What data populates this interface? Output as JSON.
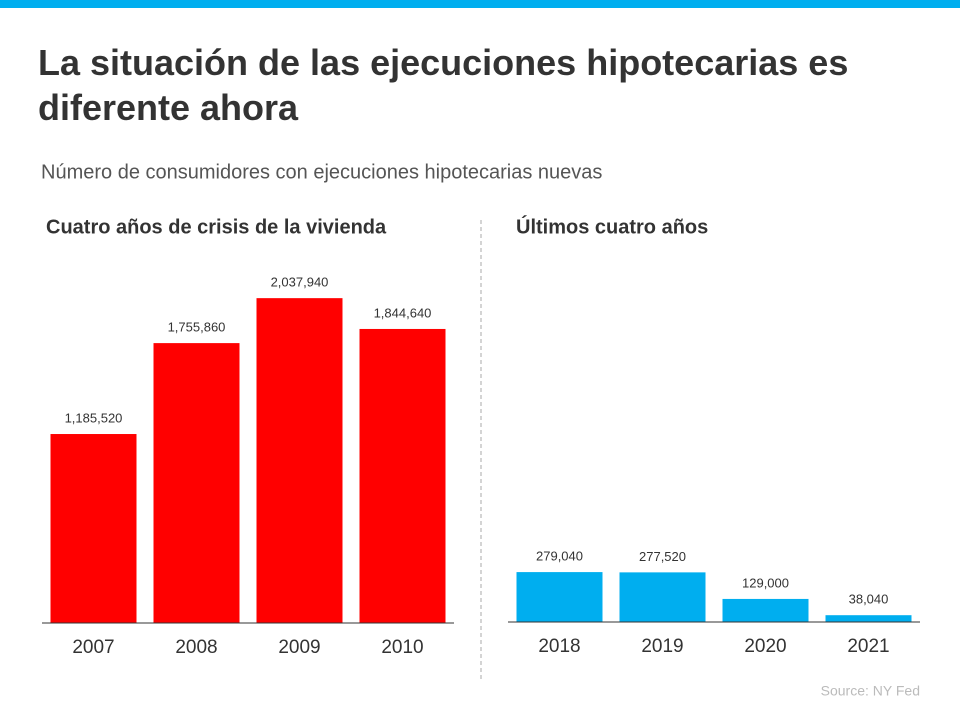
{
  "title": "La situación de las ejecuciones hipotecarias es diferente ahora",
  "subtitle": "Número de consumidores con ejecuciones hipotecarias nuevas",
  "source": "Source: NY Fed",
  "chart_data": [
    {
      "type": "bar",
      "title": "Cuatro años de crisis de la vivienda",
      "categories": [
        "2007",
        "2008",
        "2009",
        "2010"
      ],
      "values": [
        1185520,
        1755860,
        2037940,
        1844640
      ],
      "value_labels": [
        "1,185,520",
        "1,755,860",
        "2,037,940",
        "1,844,640"
      ],
      "color": "#ff0000",
      "ylim": [
        0,
        2340000
      ]
    },
    {
      "type": "bar",
      "title": "Últimos cuatro años",
      "categories": [
        "2018",
        "2019",
        "2020",
        "2021"
      ],
      "values": [
        279040,
        277520,
        129000,
        38040
      ],
      "value_labels": [
        "279,040",
        "277,520",
        "129,000",
        "38,040"
      ],
      "color": "#00aeef",
      "ylim": [
        0,
        2080000
      ]
    }
  ]
}
